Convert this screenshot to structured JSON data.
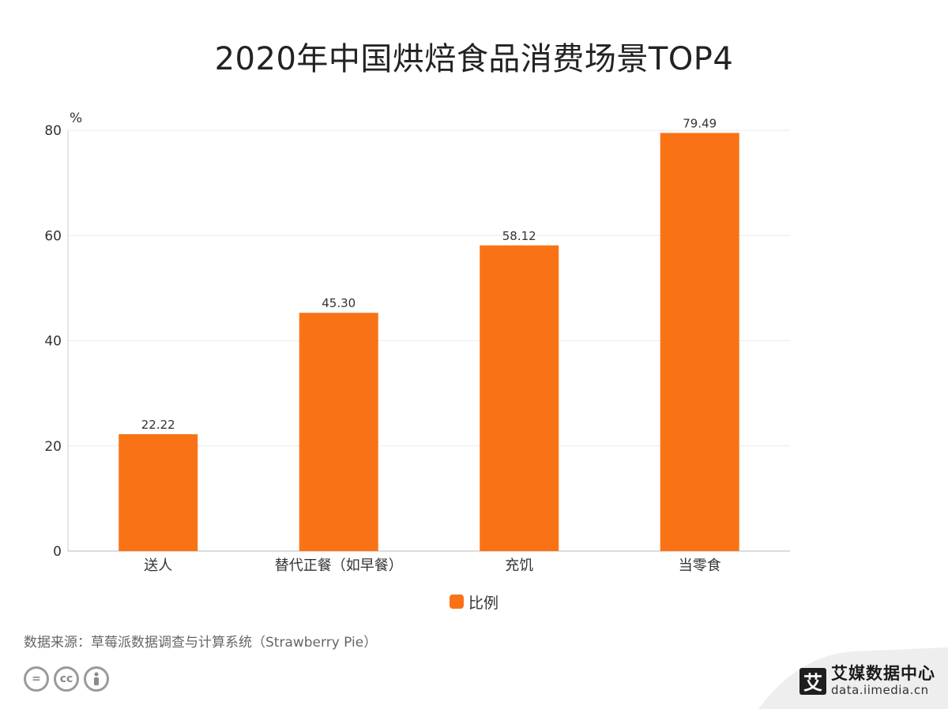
{
  "chart_data": {
    "type": "bar",
    "title": "2020年中国烘焙食品消费场景TOP4",
    "ylabel": "%",
    "xlabel": "",
    "categories": [
      "送人",
      "替代正餐（如早餐）",
      "充饥",
      "当零食"
    ],
    "series": [
      {
        "name": "比例",
        "values": [
          22.22,
          45.3,
          58.12,
          79.49
        ],
        "color": "#f97316"
      }
    ],
    "value_labels": [
      "22.22",
      "45.30",
      "58.12",
      "79.49"
    ],
    "ylim": [
      0,
      80
    ],
    "yticks": [
      0,
      20,
      40,
      60,
      80
    ],
    "grid": true,
    "legend": "bottom-center"
  },
  "source": "数据来源：草莓派数据调查与计算系统（Strawberry Pie）",
  "license_icons": [
    "cc-nd-icon",
    "cc-icon",
    "cc-by-icon"
  ],
  "brand": {
    "logo_char": "艾",
    "name": "艾媒数据中心",
    "url": "data.iimedia.cn"
  }
}
